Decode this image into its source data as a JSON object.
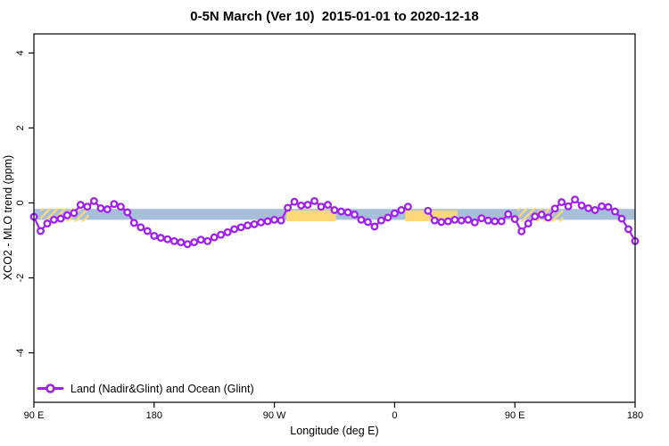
{
  "chart_data": {
    "type": "line",
    "title": "0-5N March (Ver 10)  2015-01-01 to 2020-12-18",
    "xlabel": "Longitude (deg E)",
    "ylabel": "XCO2 - MLO trend (ppm)",
    "xlim": [
      90,
      540
    ],
    "ylim": [
      -5.32,
      4.51
    ],
    "grid": false,
    "x_ticks": [
      {
        "pos": 90,
        "label": "90 E"
      },
      {
        "pos": 180,
        "label": "180"
      },
      {
        "pos": 270,
        "label": "90 W"
      },
      {
        "pos": 360,
        "label": "0"
      },
      {
        "pos": 450,
        "label": "90 E"
      },
      {
        "pos": 540,
        "label": "180"
      }
    ],
    "y_ticks": [
      {
        "pos": -4,
        "label": "-4"
      },
      {
        "pos": -2,
        "label": "-2"
      },
      {
        "pos": 0,
        "label": "0"
      },
      {
        "pos": 2,
        "label": "2"
      },
      {
        "pos": 4,
        "label": "4"
      }
    ],
    "colors": {
      "line": "#A020F0",
      "marker_fill": "#FFFFFF",
      "band_blue": "#A8BFD9",
      "band_orange": "#FDD878"
    },
    "bands": [
      {
        "name": "agreement-band-blue",
        "style": "solid",
        "color_key": "band_blue",
        "x": [
          90,
          540
        ],
        "y": [
          -0.45,
          -0.16
        ]
      },
      {
        "name": "flagged-band-hatched-1",
        "style": "hatched",
        "color_key": "band_orange",
        "x": [
          95,
          131
        ],
        "y": [
          -0.5,
          -0.14
        ]
      },
      {
        "name": "flagged-band-solid-1",
        "style": "solid",
        "color_key": "band_orange",
        "x": [
          279,
          316
        ],
        "y": [
          -0.49,
          -0.2
        ]
      },
      {
        "name": "flagged-band-solid-2",
        "style": "solid",
        "color_key": "band_orange",
        "x": [
          368,
          407
        ],
        "y": [
          -0.49,
          -0.2
        ]
      },
      {
        "name": "flagged-band-hatched-2",
        "style": "hatched",
        "color_key": "band_orange",
        "x": [
          452,
          486
        ],
        "y": [
          -0.5,
          -0.14
        ]
      }
    ],
    "legend": {
      "position": "bottom-left",
      "label": "Land (Nadir&Glint) and Ocean (Glint)"
    },
    "series": [
      {
        "name": "Land (Nadir&Glint) and Ocean (Glint)",
        "marker": "open-circle",
        "x_start": 90,
        "x_step": 5,
        "values": [
          -0.37,
          -0.75,
          -0.55,
          -0.45,
          -0.42,
          -0.33,
          -0.27,
          -0.05,
          -0.1,
          0.05,
          -0.14,
          -0.17,
          -0.03,
          -0.1,
          -0.25,
          -0.53,
          -0.65,
          -0.75,
          -0.88,
          -0.93,
          -0.97,
          -1.02,
          -1.05,
          -1.1,
          -1.05,
          -0.98,
          -1.02,
          -0.92,
          -0.85,
          -0.78,
          -0.7,
          -0.65,
          -0.6,
          -0.57,
          -0.52,
          -0.49,
          -0.45,
          -0.47,
          -0.13,
          0.03,
          -0.07,
          -0.05,
          0.05,
          -0.1,
          -0.05,
          -0.19,
          -0.23,
          -0.25,
          -0.31,
          -0.45,
          -0.51,
          -0.63,
          -0.47,
          -0.39,
          -0.28,
          -0.19,
          -0.1,
          null,
          null,
          -0.21,
          -0.47,
          -0.51,
          -0.49,
          -0.45,
          -0.47,
          -0.45,
          -0.52,
          -0.41,
          -0.47,
          -0.49,
          -0.49,
          -0.3,
          -0.43,
          -0.76,
          -0.55,
          -0.36,
          -0.31,
          -0.39,
          -0.15,
          0.02,
          -0.09,
          0.09,
          -0.07,
          -0.14,
          -0.19,
          -0.09,
          -0.11,
          -0.23,
          -0.42,
          -0.7,
          -1.02
        ]
      }
    ]
  }
}
